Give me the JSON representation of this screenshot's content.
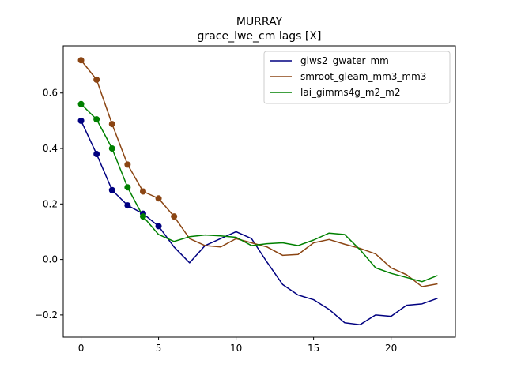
{
  "chart_data": {
    "type": "line",
    "title": "MURRAY",
    "subtitle": "grace_lwe_cm lags [X]",
    "xlim": [
      -1.15,
      24.15
    ],
    "ylim": [
      -0.28,
      0.77
    ],
    "xticks": [
      0,
      5,
      10,
      15,
      20
    ],
    "yticks": [
      -0.2,
      0.0,
      0.2,
      0.4,
      0.6
    ],
    "ytick_labels": [
      "−0.2",
      "0.0",
      "0.2",
      "0.4",
      "0.6"
    ],
    "grid": false,
    "legend_position": "top-right",
    "x": [
      0,
      1,
      2,
      3,
      4,
      5,
      6,
      7,
      8,
      9,
      10,
      11,
      12,
      13,
      14,
      15,
      16,
      17,
      18,
      19,
      20,
      21,
      22,
      23
    ],
    "series": [
      {
        "name": "glws2_gwater_mm",
        "color": "#000080",
        "marked_points": 6,
        "values": [
          0.5,
          0.38,
          0.25,
          0.195,
          0.165,
          0.12,
          0.045,
          -0.012,
          0.05,
          0.075,
          0.1,
          0.075,
          -0.01,
          -0.09,
          -0.128,
          -0.145,
          -0.18,
          -0.228,
          -0.235,
          -0.2,
          -0.205,
          -0.165,
          -0.16,
          -0.14
        ]
      },
      {
        "name": "smroot_gleam_mm3_mm3",
        "color": "#8B4513",
        "marked_points": 7,
        "values": [
          0.718,
          0.648,
          0.488,
          0.342,
          0.245,
          0.22,
          0.155,
          0.075,
          0.05,
          0.045,
          0.075,
          0.06,
          0.045,
          0.015,
          0.018,
          0.06,
          0.072,
          0.055,
          0.04,
          0.02,
          -0.03,
          -0.055,
          -0.098,
          -0.088
        ]
      },
      {
        "name": "lai_gimms4g_m2_m2",
        "color": "#008000",
        "marked_points": 5,
        "values": [
          0.56,
          0.505,
          0.4,
          0.26,
          0.155,
          0.09,
          0.065,
          0.082,
          0.088,
          0.085,
          0.08,
          0.05,
          0.057,
          0.06,
          0.05,
          0.07,
          0.095,
          0.09,
          0.035,
          -0.03,
          -0.05,
          -0.065,
          -0.08,
          -0.058
        ]
      }
    ]
  }
}
